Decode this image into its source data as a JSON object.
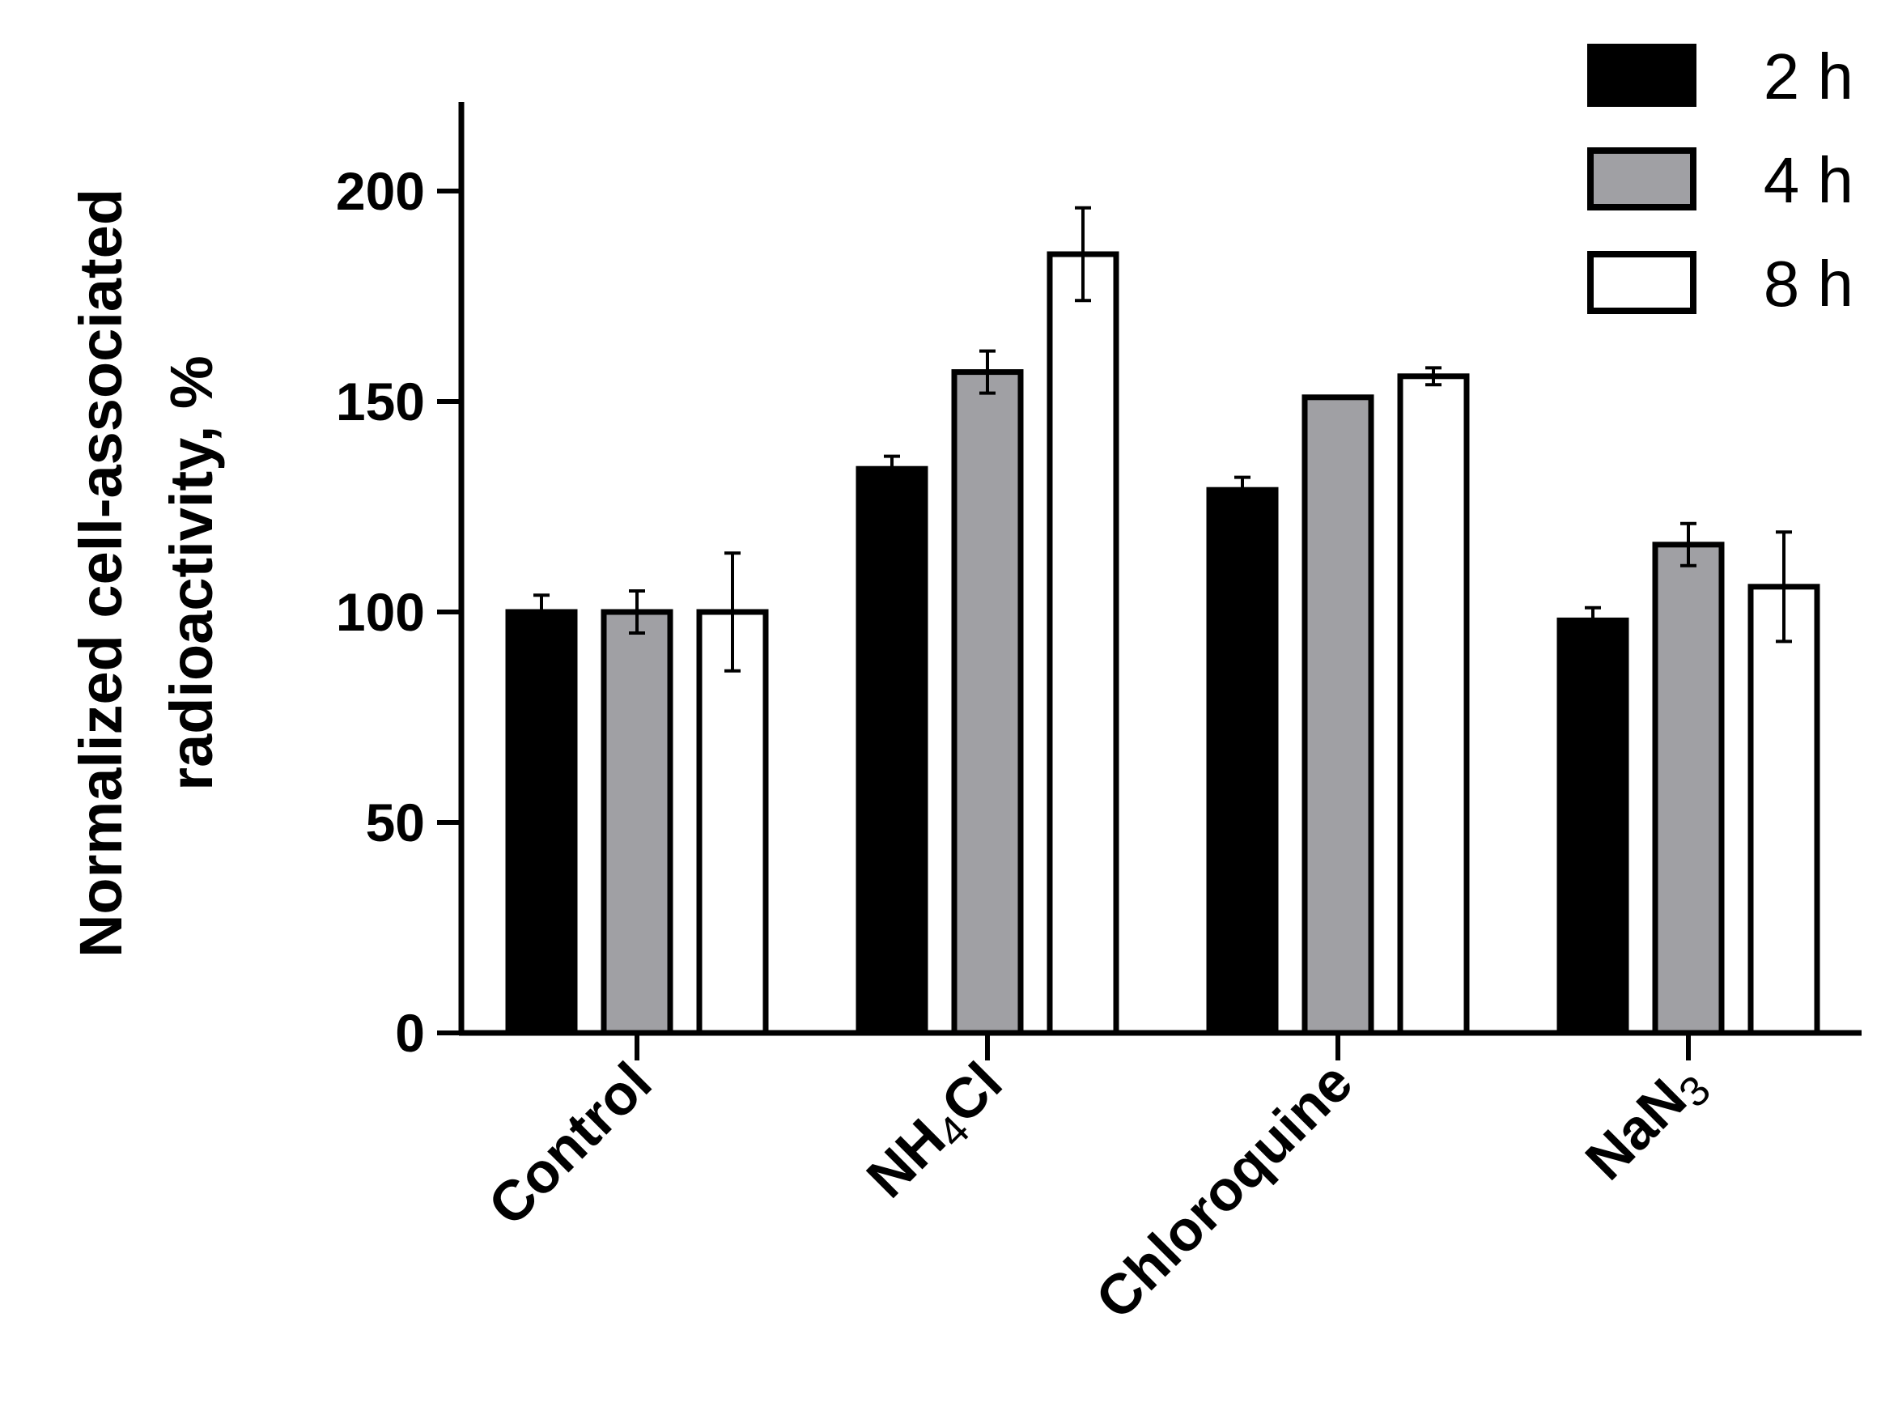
{
  "chart_data": {
    "type": "bar",
    "title": "",
    "xlabel": "",
    "ylabel_lines": [
      "Normalized cell-associated",
      "radioactivity, %"
    ],
    "ylim": [
      0,
      220
    ],
    "yticks": [
      0,
      50,
      100,
      150,
      200
    ],
    "categories": [
      {
        "base": "Control",
        "sub": "",
        "tail": ""
      },
      {
        "base": "NH",
        "sub": "4",
        "tail": "Cl"
      },
      {
        "base": "Chloroquine",
        "sub": "",
        "tail": ""
      },
      {
        "base": "NaN",
        "sub": "3",
        "tail": ""
      }
    ],
    "series": [
      {
        "name": "2 h",
        "color": "#000000",
        "values": [
          100,
          134,
          129,
          98
        ],
        "errors": [
          4,
          3,
          3,
          3
        ]
      },
      {
        "name": "4 h",
        "color": "#a0a0a4",
        "values": [
          100,
          157,
          151,
          116
        ],
        "errors": [
          5,
          5,
          0,
          5
        ]
      },
      {
        "name": "8 h",
        "color": "#ffffff",
        "values": [
          100,
          185,
          156,
          106
        ],
        "errors": [
          14,
          11,
          2,
          13
        ]
      }
    ],
    "legend_position": "top-right",
    "grid": false
  }
}
